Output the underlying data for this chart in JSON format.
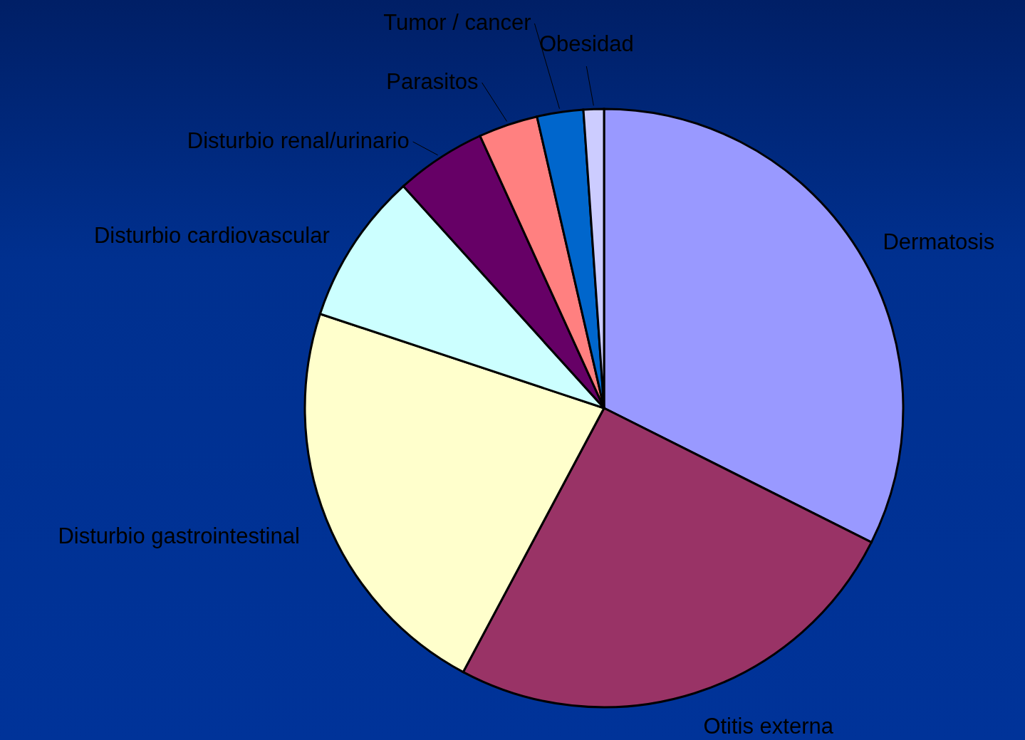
{
  "chart_data": {
    "type": "pie",
    "categories": [
      "Dermatosis",
      "Otitis externa",
      "Disturbio gastrointestinal",
      "Disturbio cardiovascular",
      "Disturbio renal/urinario",
      "Parasitos",
      "Tumor / cancer",
      "Obesidad"
    ],
    "values": [
      32.4,
      25.4,
      22.3,
      8.2,
      4.9,
      3.2,
      2.5,
      1.1
    ],
    "colors": [
      "#9999ff",
      "#993366",
      "#ffffcc",
      "#ccffff",
      "#660066",
      "#ff8080",
      "#0066cc",
      "#ccccff"
    ]
  }
}
